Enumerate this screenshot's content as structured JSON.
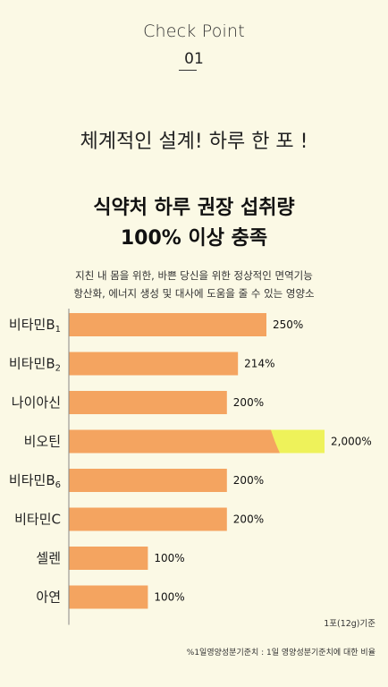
{
  "header": {
    "check_point_label": "Check Point",
    "check_point_number": "01"
  },
  "tagline": "체계적인 설계! 하루 한 포 !",
  "headline": {
    "line1": "식약처 하루 권장 섭취량",
    "line2": "100% 이상 충족"
  },
  "description": {
    "line1": "지친 내 몸을 위한, 바쁜 당신을 위한 정상적인 면역기능",
    "line2": "항산화, 에너지 생성 및 대사에 도움을 줄 수 있는 영양소"
  },
  "chart_data": {
    "type": "bar",
    "orientation": "horizontal",
    "categories": [
      "비타민B1",
      "비타민B2",
      "나이아신",
      "비오틴",
      "비타민B6",
      "비타민C",
      "셀렌",
      "아연"
    ],
    "category_display": [
      {
        "main": "비타민B",
        "sub": "1"
      },
      {
        "main": "비타민B",
        "sub": "2"
      },
      {
        "main": "나이아신",
        "sub": ""
      },
      {
        "main": "비오틴",
        "sub": ""
      },
      {
        "main": "비타민B",
        "sub": "6"
      },
      {
        "main": "비타민C",
        "sub": ""
      },
      {
        "main": "셀렌",
        "sub": ""
      },
      {
        "main": "아연",
        "sub": ""
      }
    ],
    "values": [
      250,
      214,
      200,
      2000,
      200,
      200,
      100,
      100
    ],
    "value_labels": [
      "250%",
      "214%",
      "200%",
      "2,000%",
      "200%",
      "200%",
      "100%",
      "100%"
    ],
    "unit": "%",
    "axis_broken": true,
    "colors": {
      "bar": "#f4a460",
      "overflow": "#eef25a",
      "axis": "#888888"
    }
  },
  "serving_note": "1포(12g)기준",
  "footnote": "%1일영양성분기준치 : 1일 영양성분기준치에 대한 비율"
}
